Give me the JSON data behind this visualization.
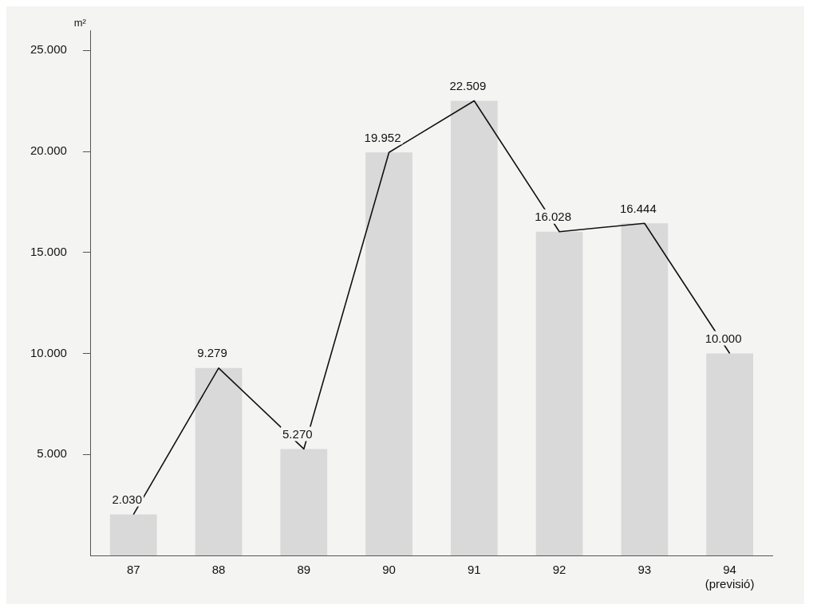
{
  "chart_data": {
    "type": "bar",
    "ylabel": "m²",
    "categories": [
      "87",
      "88",
      "89",
      "90",
      "91",
      "92",
      "93",
      "94 (previsió)"
    ],
    "series": [
      {
        "color": "#d9d9d9",
        "values": [
          2030,
          9279,
          5270,
          19952,
          22509,
          16028,
          16444,
          10000
        ]
      },
      {
        "type": "line",
        "color": "#111111",
        "values": [
          2030,
          9279,
          5270,
          19952,
          22509,
          16028,
          16444,
          10000
        ],
        "value_labels": [
          "2.030",
          "9.279",
          "5.270",
          "19.952",
          "22.509",
          "16.028",
          "16.444",
          "10.000"
        ]
      }
    ],
    "ylim": [
      0,
      26000
    ],
    "yticks": [
      {
        "value": 5000,
        "label": "5.000"
      },
      {
        "value": 10000,
        "label": "10.000"
      },
      {
        "value": 15000,
        "label": "15.000"
      },
      {
        "value": 20000,
        "label": "20.000"
      },
      {
        "value": 25000,
        "label": "25.000"
      }
    ],
    "grid": false,
    "legend": false,
    "marker": "none",
    "line_style": "solid"
  }
}
